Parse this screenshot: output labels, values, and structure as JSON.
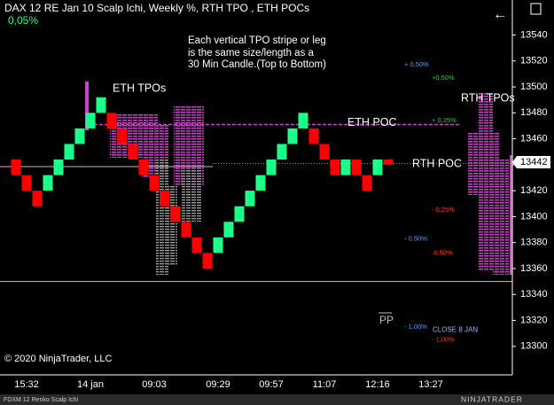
{
  "chart_data": {
    "type": "renko",
    "title": "DAX 12 RE Jan 10 Scalp Ichi, Weekly %, RTH TPO , ETH POCs",
    "change": "0,05%",
    "note": [
      "Each vertical TPO stripe or leg",
      "is the same size/length as a",
      "30 Min Candle.(Top to Bottom)"
    ],
    "labels": {
      "eth_tpo": "ETH TPOs",
      "rth_tpo": "RTH TPOs",
      "pp": "PP"
    },
    "copyright": "© 2020 NinjaTrader, LLC",
    "status": "FDXM 12 Renko Scalp Ichi",
    "brand": "NINJATRADER",
    "up_color": "#19ff8a",
    "down_color": "#ff0000",
    "categories": [
      null,
      "15:32",
      null,
      null,
      null,
      null,
      null,
      "14 jan",
      null,
      null,
      null,
      null,
      null,
      "09:03",
      null,
      null,
      null,
      null,
      null,
      "09:29",
      null,
      null,
      null,
      null,
      "09:57",
      null,
      null,
      null,
      null,
      "11:07",
      null,
      null,
      null,
      null,
      "12:16",
      null,
      null,
      null,
      null,
      "13:27"
    ],
    "open": [
      13444,
      13432,
      13420,
      13420,
      13432,
      13444,
      13456,
      13468,
      13480,
      13480,
      13468,
      13456,
      13444,
      13432,
      13420,
      13408,
      13396,
      13384,
      13372,
      13372,
      13384,
      13396,
      13408,
      13420,
      13432,
      13444,
      13456,
      13468,
      13468,
      13456,
      13444,
      13432,
      13444,
      13432,
      13432,
      13444,
      null,
      null,
      null,
      null
    ],
    "close": [
      13432,
      13420,
      13408,
      13432,
      13444,
      13456,
      13468,
      13480,
      13492,
      13468,
      13456,
      13444,
      13432,
      13420,
      13408,
      13396,
      13384,
      13372,
      13360,
      13384,
      13396,
      13408,
      13420,
      13432,
      13444,
      13456,
      13468,
      13480,
      13456,
      13444,
      13432,
      13444,
      13432,
      13420,
      13444,
      13440,
      null,
      null,
      null,
      null
    ],
    "levels": [
      {
        "name": "ETH POC",
        "value": 13471,
        "color": "#d040d0",
        "style": "dashed"
      },
      {
        "name": "RTH POC",
        "value": 13441,
        "color": "#999999",
        "style": "dotted"
      },
      {
        "name": "CLOSE 8 JAN",
        "value": 13350,
        "color": "#e0b8c8",
        "style": "solid"
      }
    ],
    "pct_levels": [
      {
        "label": "+ 0,50%",
        "value": 13517,
        "color": "#4aa3ff"
      },
      {
        "label": "+0,50%",
        "value": 13507,
        "color": "#2ecc40"
      },
      {
        "label": "+ 0,25%",
        "value": 13474,
        "color": "#2ecc40"
      },
      {
        "label": "- 0,25%",
        "value": 13405,
        "color": "#ff3030"
      },
      {
        "label": "- 0,50%",
        "value": 13383,
        "color": "#4aa3ff"
      },
      {
        "label": "-0,50%",
        "value": 13372,
        "color": "#ff3030"
      },
      {
        "label": "- 1,00%",
        "value": 13315,
        "color": "#4aa3ff"
      },
      {
        "label": "- 1,00%",
        "value": 13305,
        "color": "#ff3030"
      }
    ],
    "current_price": 13442,
    "ylim": [
      13278,
      13567
    ],
    "yticks": [
      13300,
      13320,
      13340,
      13360,
      13380,
      13400,
      13420,
      13440,
      13460,
      13480,
      13500,
      13520,
      13540
    ]
  }
}
